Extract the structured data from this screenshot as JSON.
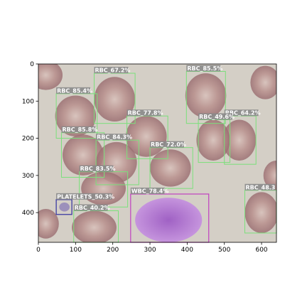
{
  "image_axes": {
    "x_ticks": [
      "0",
      "100",
      "200",
      "300",
      "400",
      "500",
      "600"
    ],
    "y_ticks": [
      "0",
      "100",
      "200",
      "300",
      "400"
    ],
    "x_range": [
      0,
      640
    ],
    "y_range": [
      0,
      480
    ]
  },
  "colors": {
    "rbc_box": "#7be07b",
    "wbc_box": "#c040c0",
    "platelet_box": "#3030a0",
    "label_bg": "#8a8a8a",
    "cell_bg": "#d8d0c8",
    "rbc_fill": "#b89090"
  },
  "detections": [
    {
      "label": "RBC",
      "score": "67.2%",
      "text": "RBC_67.2%",
      "x": 150,
      "y": 25,
      "w": 110,
      "h": 135,
      "class": "rbc"
    },
    {
      "label": "RBC",
      "score": "85.5%",
      "text": "RBC_85.5%",
      "x": 398,
      "y": 20,
      "w": 105,
      "h": 140,
      "class": "rbc"
    },
    {
      "label": "RBC",
      "score": "85.4%",
      "text": "RBC_85.4%",
      "x": 48,
      "y": 80,
      "w": 110,
      "h": 120,
      "class": "rbc"
    },
    {
      "label": "RBC",
      "score": "77.8%",
      "text": "RBC_77.8%",
      "x": 238,
      "y": 140,
      "w": 110,
      "h": 115,
      "class": "rbc"
    },
    {
      "label": "RBC",
      "score": "64.2%",
      "text": "RBC_64.2%",
      "x": 500,
      "y": 140,
      "w": 85,
      "h": 130,
      "class": "rbc"
    },
    {
      "label": "RBC",
      "score": "49.6%",
      "text": "RBC_49.6%",
      "x": 430,
      "y": 150,
      "w": 85,
      "h": 115,
      "class": "rbc"
    },
    {
      "label": "RBC",
      "score": "85.8%",
      "text": "RBC_85.8%",
      "x": 62,
      "y": 185,
      "w": 115,
      "h": 120,
      "class": "rbc"
    },
    {
      "label": "RBC",
      "score": "84.3%",
      "text": "RBC_84.3%",
      "x": 155,
      "y": 205,
      "w": 115,
      "h": 120,
      "class": "rbc"
    },
    {
      "label": "RBC",
      "score": "72.0%",
      "text": "RBC_72.0%",
      "x": 300,
      "y": 225,
      "w": 115,
      "h": 110,
      "class": "rbc"
    },
    {
      "label": "RBC",
      "score": "83.5%",
      "text": "RBC_83.5%",
      "x": 110,
      "y": 290,
      "w": 130,
      "h": 95,
      "class": "rbc"
    },
    {
      "label": "RBC",
      "score": "48.3",
      "text": "RBC_48.3",
      "x": 555,
      "y": 340,
      "w": 90,
      "h": 115,
      "class": "rbc"
    },
    {
      "label": "WBC",
      "score": "78.4%",
      "text": "WBC_78.4%",
      "x": 248,
      "y": 350,
      "w": 210,
      "h": 135,
      "class": "wbc"
    },
    {
      "label": "PLATELETS",
      "score": "50.3%",
      "text": "PLATELETS_50.3%",
      "x": 48,
      "y": 365,
      "w": 42,
      "h": 40,
      "class": "platelet"
    },
    {
      "label": "RBC",
      "score": "40.2%",
      "text": "RBC_40.2%",
      "x": 95,
      "y": 395,
      "w": 120,
      "h": 90,
      "class": "rbc"
    }
  ]
}
